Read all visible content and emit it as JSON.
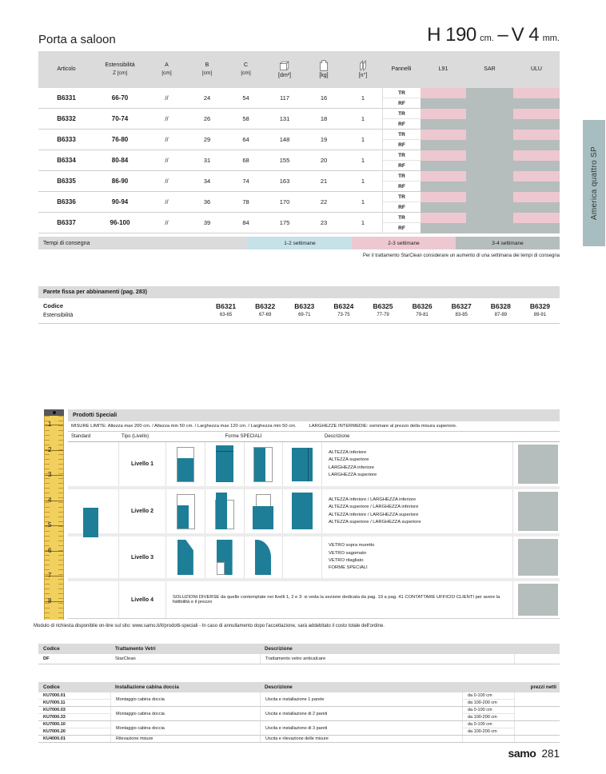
{
  "page": {
    "title": "Porta a saloon",
    "size": {
      "h_value": "H 190",
      "h_unit": "cm.",
      "sep": "–",
      "v_value": "V 4",
      "v_unit": "mm."
    },
    "side_tab": "America quattro SP",
    "footer": {
      "brand": "samo",
      "page_number": "281"
    }
  },
  "colors": {
    "pink": "#edc8d1",
    "gray": "#b6bdbd",
    "light_blue": "#c6e1e8",
    "teal": "#1e7e97",
    "header_gray": "#dbdbdb",
    "ruler_yellow": "#f2d05e",
    "tab_gray_blue": "#a8bdc0"
  },
  "main_table": {
    "columns": [
      {
        "label": "Articolo"
      },
      {
        "label": "Estensibilità",
        "sub": "Z [cm]"
      },
      {
        "label": "A",
        "sub": "[cm]"
      },
      {
        "label": "B",
        "sub": "[cm]"
      },
      {
        "label": "C",
        "sub": "[cm]"
      },
      {
        "icon": "box-icon",
        "label": "[dm²]"
      },
      {
        "icon": "weight-icon",
        "label": "[kg]"
      },
      {
        "icon": "panels-icon",
        "label": "[n°]"
      },
      {
        "label": "Pannelli"
      },
      {
        "label": "L91"
      },
      {
        "label": "SAR"
      },
      {
        "label": "ULU"
      }
    ],
    "rows": [
      {
        "articolo": "B6331",
        "estensibilita": "66-70",
        "a": "//",
        "b": "24",
        "c": "54",
        "dm2": "117",
        "kg": "16",
        "n": "1"
      },
      {
        "articolo": "B6332",
        "estensibilita": "70-74",
        "a": "//",
        "b": "26",
        "c": "58",
        "dm2": "131",
        "kg": "18",
        "n": "1"
      },
      {
        "articolo": "B6333",
        "estensibilita": "76-80",
        "a": "//",
        "b": "29",
        "c": "64",
        "dm2": "148",
        "kg": "19",
        "n": "1"
      },
      {
        "articolo": "B6334",
        "estensibilita": "80-84",
        "a": "//",
        "b": "31",
        "c": "68",
        "dm2": "155",
        "kg": "20",
        "n": "1"
      },
      {
        "articolo": "B6335",
        "estensibilita": "86-90",
        "a": "//",
        "b": "34",
        "c": "74",
        "dm2": "163",
        "kg": "21",
        "n": "1"
      },
      {
        "articolo": "B6336",
        "estensibilita": "90-94",
        "a": "//",
        "b": "36",
        "c": "78",
        "dm2": "170",
        "kg": "22",
        "n": "1"
      },
      {
        "articolo": "B6337",
        "estensibilita": "96-100",
        "a": "//",
        "b": "39",
        "c": "84",
        "dm2": "175",
        "kg": "23",
        "n": "1"
      }
    ],
    "panel_labels": [
      "TR",
      "RF"
    ],
    "panel_colors": {
      "TR": [
        "pink",
        "gray",
        "pink"
      ],
      "RF": [
        "gray",
        "gray",
        "gray"
      ]
    }
  },
  "tempi": {
    "label": "Tempi di consegna",
    "legend": [
      {
        "label": "1-2 settimane",
        "color": "light_blue"
      },
      {
        "label": "2-3 settimane",
        "color": "pink"
      },
      {
        "label": "3-4 settimane",
        "color": "gray"
      }
    ],
    "note": "Per il trattamento StarClean considerare un aumento di una settimana dei tempi di consegna"
  },
  "parete_fissa": {
    "title": "Parete fissa per abbinamenti (pag. 283)",
    "row_labels": [
      "Codice",
      "Estensibilità"
    ],
    "items": [
      {
        "code": "B6321",
        "range": "63-65"
      },
      {
        "code": "B6322",
        "range": "67-69"
      },
      {
        "code": "B6323",
        "range": "69-71"
      },
      {
        "code": "B6324",
        "range": "73-75"
      },
      {
        "code": "B6325",
        "range": "77-79"
      },
      {
        "code": "B6326",
        "range": "79-81"
      },
      {
        "code": "B6327",
        "range": "83-85"
      },
      {
        "code": "B6328",
        "range": "87-89"
      },
      {
        "code": "B6329",
        "range": "89-91"
      }
    ]
  },
  "prodotti_speciali": {
    "title": "Prodotti Speciali",
    "misure_limite": "MISURE LIMITE: Altezza max 200 cm. / Altezza min 50 cm. / Larghezza max 120 cm. / Larghezza min 50 cm.",
    "larghezze_intermedie": "LARGHEZZE INTERMEDIE: sommare al prezzo della misura superiore.",
    "col_headers": [
      "Standard",
      "Tipo (Livello)",
      "Forme SPECIALI",
      "Descrizione"
    ],
    "livelli": [
      {
        "name": "Livello 1",
        "shapes": [
          "altezza-inferiore-shape",
          "altezza-superiore-shape",
          "larghezza-inferiore-shape",
          "larghezza-superiore-shape"
        ],
        "descriptions": [
          "ALTEZZA inferiore",
          "ALTEZZA superiore",
          "LARGHEZZA inferiore",
          "LARGHEZZA superiore"
        ]
      },
      {
        "name": "Livello 2",
        "shapes": [
          "altezza-inf-larghezza-inf-shape",
          "altezza-sup-larghezza-inf-shape",
          "altezza-inf-larghezza-sup-shape",
          "altezza-sup-larghezza-sup-shape"
        ],
        "descriptions": [
          "ALTEZZA inferiore / LARGHEZZA inferiore",
          "ALTEZZA superiore / LARGHEZZA inferiore",
          "ALTEZZA inferiore / LARGHEZZA superiore",
          "ALTEZZA superiore / LARGHEZZA superiore"
        ]
      },
      {
        "name": "Livello 3",
        "shapes": [
          "vetro-sopra-muretto-shape",
          "vetro-sagomato-shape",
          "vetro-ritagliato-shape",
          ""
        ],
        "descriptions": [
          "VETRO sopra muretto",
          "VETRO sagomato",
          "VETRO ritagliato",
          "FORME SPECIALI"
        ]
      }
    ],
    "livello4": {
      "name": "Livello 4",
      "text": "SOLUZIONI DIVERSE da quelle contemplate nei livelli 1, 2 e 3: si veda la sezione dedicata da pag. 19 a pag. 41 CONTATTARE UFFICIO CLIENTI per avere la fattibilità e il prezzo"
    },
    "footnote": "Modulo di richiesta disponibile on-line sul sito: www.samo.it/it/prodotti-speciali - In caso di annullamento dopo l'accettazione, sarà addebitato il costo totale dell'ordine.",
    "ruler_numbers": [
      "1",
      "2",
      "3",
      "4",
      "5",
      "6",
      "7",
      "8"
    ]
  },
  "trattamento_vetri": {
    "headers": [
      "Codice",
      "Trattamento Vetri",
      "Descrizione"
    ],
    "rows": [
      {
        "codice": "DF",
        "trattamento": "StarClean",
        "descrizione": "Trattamento vetro anticalcare"
      }
    ]
  },
  "installazione": {
    "headers": [
      "Codice",
      "Installazione cabina doccia",
      "Descrizione",
      "prezzi netti"
    ],
    "groups": [
      {
        "codes": [
          "KU7000.01",
          "KU7000.11"
        ],
        "name": "Montaggio cabina doccia",
        "descrizione": "Uscita e installazione 1 parete",
        "ranges": [
          "da 0-100 cm",
          "da 100-200 cm"
        ]
      },
      {
        "codes": [
          "KU7000.03",
          "KU7000.33"
        ],
        "name": "Montaggio cabina doccia",
        "descrizione": "Uscita e installazione di 2 pareti",
        "ranges": [
          "da 0-100 cm",
          "da 100-200 cm"
        ]
      },
      {
        "codes": [
          "KU7000.10",
          "KU7000.20"
        ],
        "name": "Montaggio cabina doccia",
        "descrizione": "Uscita e installazione di 3 pareti",
        "ranges": [
          "da 0-100 cm",
          "da 100-200 cm"
        ]
      },
      {
        "codes": [
          "KU4000.01"
        ],
        "name": "Rilevazione misure",
        "descrizione": "Uscita e rilevazione delle misure",
        "ranges": [
          ""
        ]
      }
    ]
  }
}
